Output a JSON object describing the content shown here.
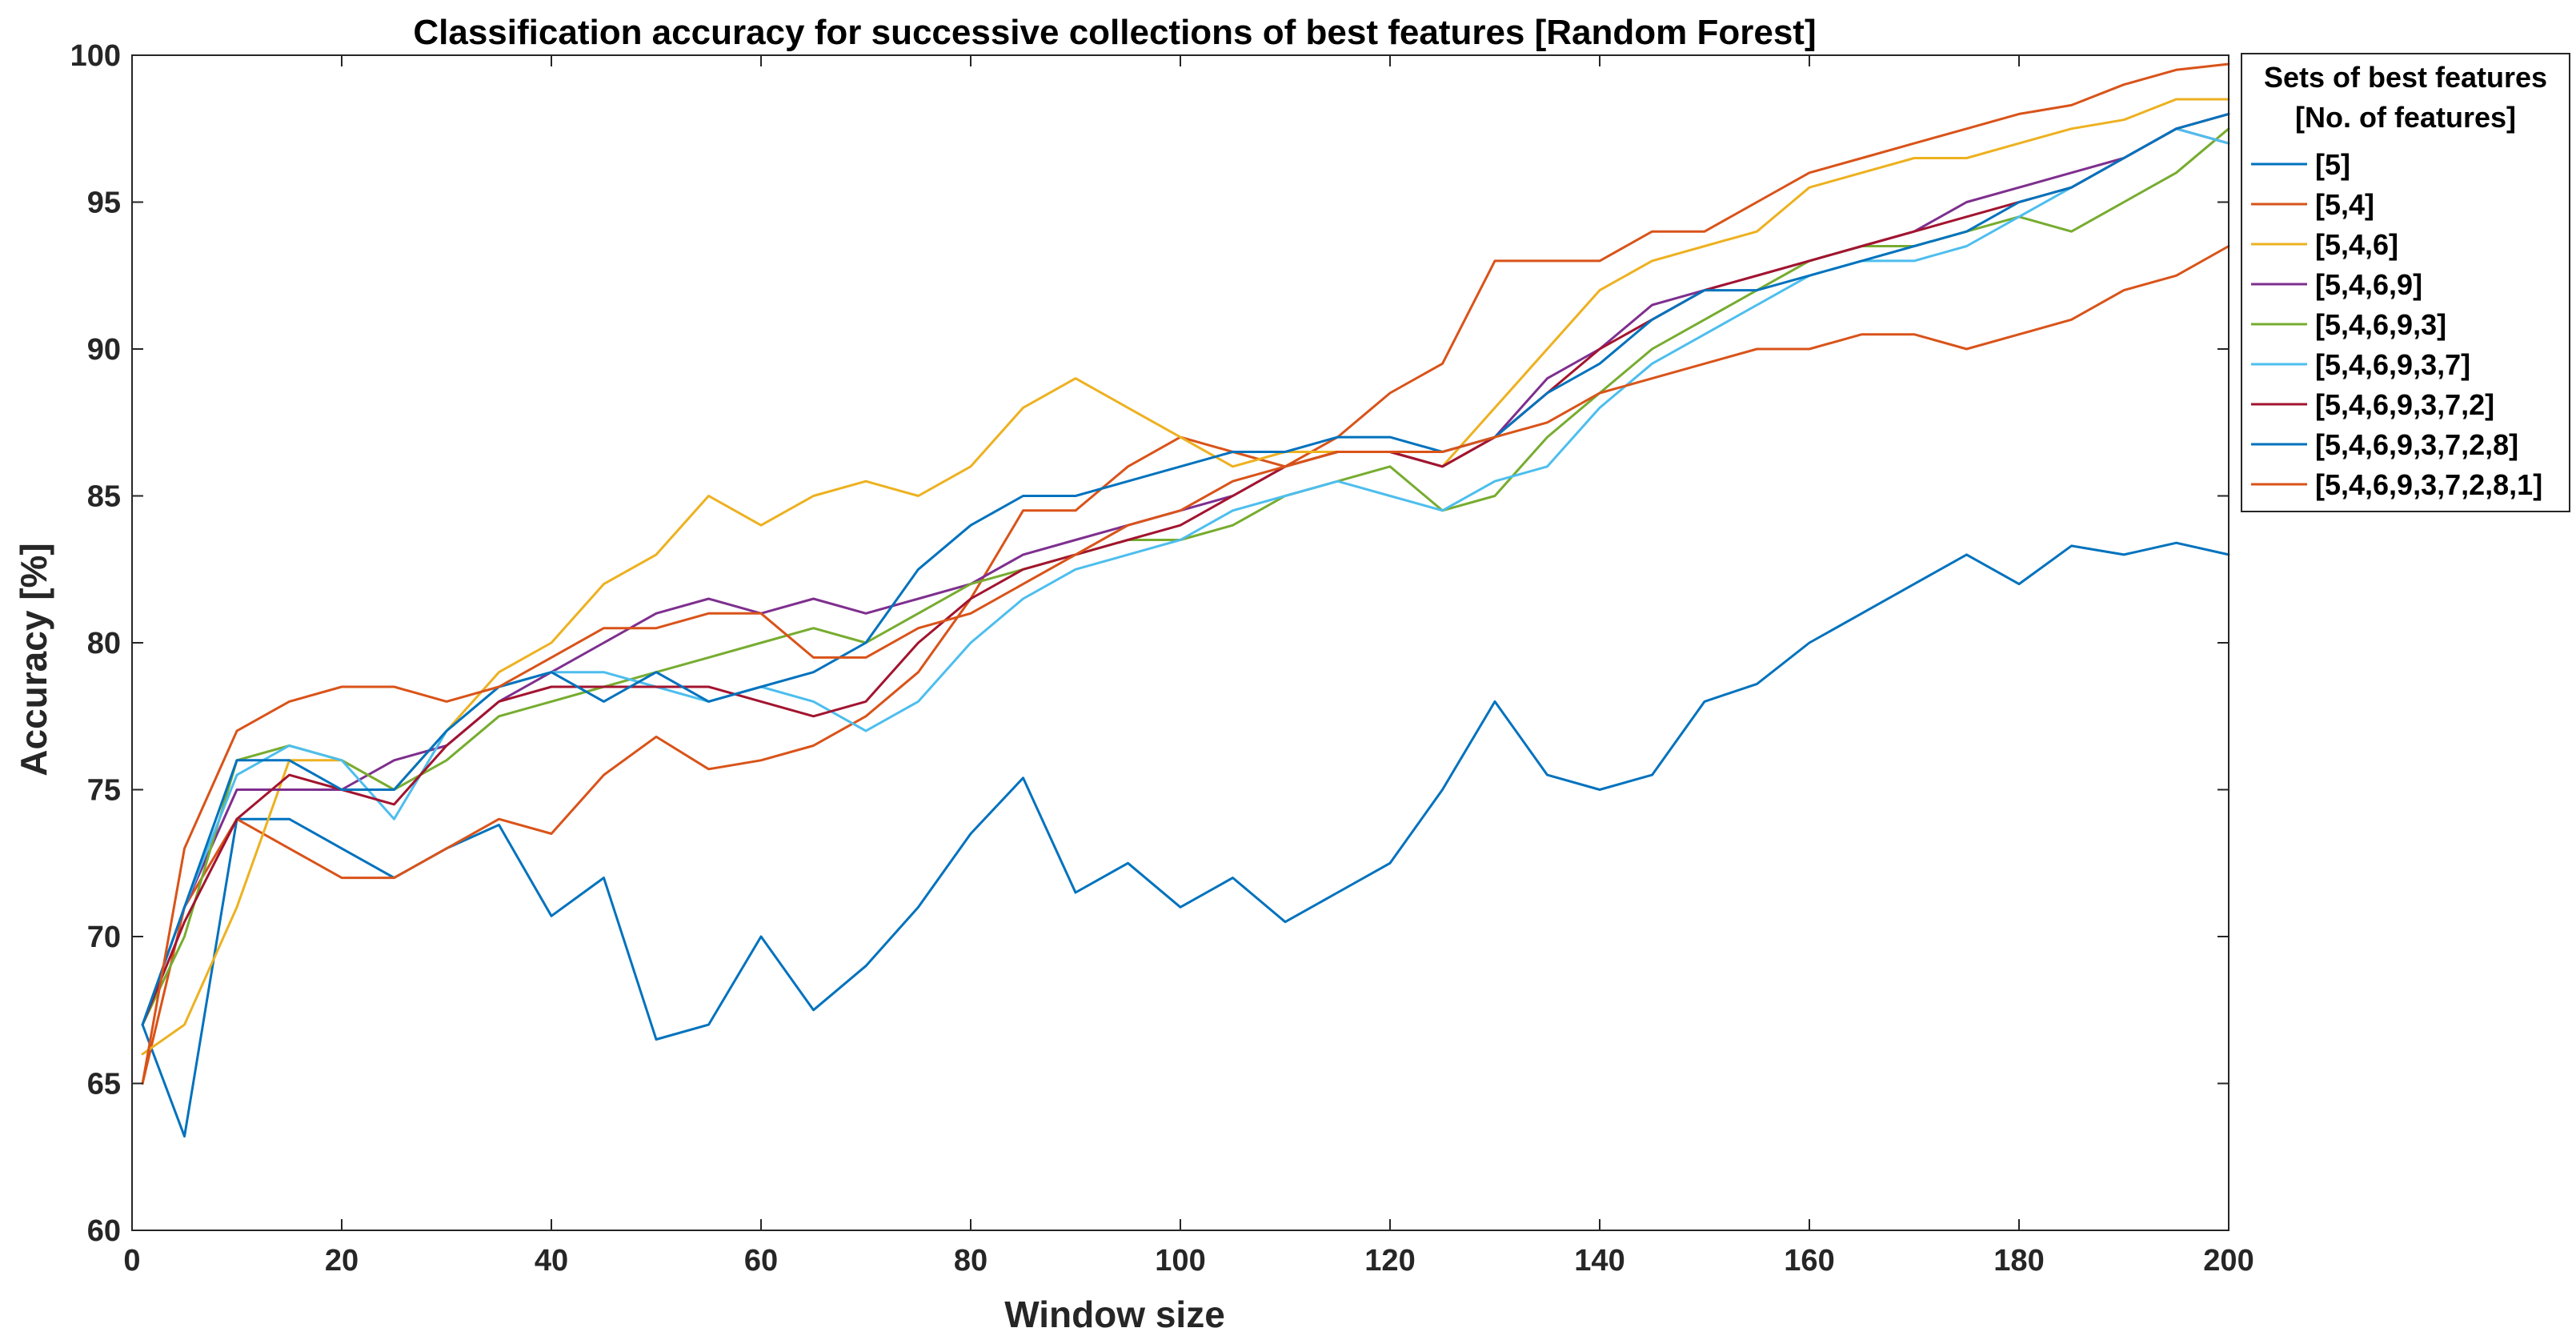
{
  "chart_data": {
    "type": "line",
    "title": "Classification accuracy for successive collections of best features [Random Forest]",
    "xlabel": "Window size",
    "ylabel": "Accuracy [%]",
    "xlim": [
      0,
      200
    ],
    "ylim": [
      60,
      100
    ],
    "xticks": [
      0,
      20,
      40,
      60,
      80,
      100,
      120,
      140,
      160,
      180,
      200
    ],
    "yticks": [
      60,
      65,
      70,
      75,
      80,
      85,
      90,
      95,
      100
    ],
    "grid": false,
    "legend_position": "outside-right-top",
    "legend_title": [
      "Sets of best features",
      "[No. of features]"
    ],
    "x_sample": [
      1,
      5,
      10,
      15,
      20,
      25,
      30,
      35,
      40,
      45,
      50,
      55,
      60,
      65,
      70,
      75,
      80,
      85,
      90,
      95,
      100,
      105,
      110,
      115,
      120,
      125,
      130,
      135,
      140,
      145,
      150,
      155,
      160,
      165,
      170,
      175,
      180,
      185,
      190,
      195,
      200
    ],
    "series": [
      {
        "name": "[5]",
        "color": "#0072BD",
        "values": [
          67.0,
          63.2,
          74.0,
          74.0,
          73.0,
          72.0,
          73.0,
          73.8,
          70.7,
          72.0,
          66.5,
          67.0,
          70.0,
          67.5,
          69.0,
          71.0,
          73.5,
          75.4,
          71.5,
          72.5,
          71.0,
          72.0,
          70.5,
          71.5,
          72.5,
          75.0,
          78.0,
          75.5,
          75.0,
          75.5,
          78.0,
          78.6,
          80.0,
          81.0,
          82.0,
          83.0,
          82.0,
          83.3,
          83.0,
          83.4,
          83.0
        ]
      },
      {
        "name": "[5,4]",
        "color": "#D95319",
        "values": [
          65.0,
          71.0,
          74.0,
          73.0,
          72.0,
          72.0,
          73.0,
          74.0,
          73.5,
          75.5,
          76.8,
          75.7,
          76.0,
          76.5,
          77.5,
          79.0,
          81.5,
          84.5,
          84.5,
          86.0,
          87.0,
          86.5,
          86.0,
          87.0,
          88.5,
          89.5,
          93.0,
          93.0,
          93.0,
          94.0,
          94.0,
          95.0,
          96.0,
          96.5,
          97.0,
          97.5,
          98.0,
          98.3,
          99.0,
          99.5,
          99.7
        ]
      },
      {
        "name": "[5,4,6]",
        "color": "#EDB120",
        "values": [
          66.0,
          67.0,
          71.0,
          76.0,
          76.0,
          75.0,
          77.0,
          79.0,
          80.0,
          82.0,
          83.0,
          85.0,
          84.0,
          85.0,
          85.5,
          85.0,
          86.0,
          88.0,
          89.0,
          88.0,
          87.0,
          86.0,
          86.5,
          86.5,
          86.5,
          86.0,
          88.0,
          90.0,
          92.0,
          93.0,
          93.5,
          94.0,
          95.5,
          96.0,
          96.5,
          96.5,
          97.0,
          97.5,
          97.8,
          98.5,
          98.5
        ]
      },
      {
        "name": "[5,4,6,9]",
        "color": "#7E2F8E",
        "values": [
          67.0,
          71.0,
          75.0,
          75.0,
          75.0,
          76.0,
          76.5,
          78.0,
          79.0,
          80.0,
          81.0,
          81.5,
          81.0,
          81.5,
          81.0,
          81.5,
          82.0,
          83.0,
          83.5,
          84.0,
          84.5,
          85.0,
          86.0,
          86.5,
          86.5,
          86.0,
          87.0,
          89.0,
          90.0,
          91.5,
          92.0,
          92.5,
          93.0,
          93.5,
          94.0,
          95.0,
          95.5,
          96.0,
          96.5,
          97.5,
          97.0
        ]
      },
      {
        "name": "[5,4,6,9,3]",
        "color": "#77AC30",
        "values": [
          67.0,
          70.0,
          76.0,
          76.5,
          76.0,
          75.0,
          76.0,
          77.5,
          78.0,
          78.5,
          79.0,
          79.5,
          80.0,
          80.5,
          80.0,
          81.0,
          82.0,
          82.5,
          83.0,
          83.5,
          83.5,
          84.0,
          85.0,
          85.5,
          86.0,
          84.5,
          85.0,
          87.0,
          88.5,
          90.0,
          91.0,
          92.0,
          93.0,
          93.5,
          93.5,
          94.0,
          94.5,
          94.0,
          95.0,
          96.0,
          97.5
        ]
      },
      {
        "name": "[5,4,6,9,3,7]",
        "color": "#4DBEEE",
        "values": [
          67.0,
          71.0,
          75.5,
          76.5,
          76.0,
          74.0,
          77.0,
          78.5,
          79.0,
          79.0,
          78.5,
          78.0,
          78.5,
          78.0,
          77.0,
          78.0,
          80.0,
          81.5,
          82.5,
          83.0,
          83.5,
          84.5,
          85.0,
          85.5,
          85.0,
          84.5,
          85.5,
          86.0,
          88.0,
          89.5,
          90.5,
          91.5,
          92.5,
          93.0,
          93.0,
          93.5,
          94.5,
          95.5,
          96.5,
          97.5,
          97.0
        ]
      },
      {
        "name": "[5,4,6,9,3,7,2]",
        "color": "#A2142F",
        "values": [
          67.0,
          70.5,
          74.0,
          75.5,
          75.0,
          74.5,
          76.5,
          78.0,
          78.5,
          78.5,
          78.5,
          78.5,
          78.0,
          77.5,
          78.0,
          80.0,
          81.5,
          82.5,
          83.0,
          83.5,
          84.0,
          85.0,
          86.0,
          86.5,
          86.5,
          86.0,
          87.0,
          88.5,
          90.0,
          91.0,
          92.0,
          92.5,
          93.0,
          93.5,
          94.0,
          94.5,
          95.0,
          95.5,
          96.5,
          97.5,
          98.0
        ]
      },
      {
        "name": "[5,4,6,9,3,7,2,8]",
        "color": "#0072BD",
        "values": [
          67.0,
          71.0,
          76.0,
          76.0,
          75.0,
          75.0,
          77.0,
          78.5,
          79.0,
          78.0,
          79.0,
          78.0,
          78.5,
          79.0,
          80.0,
          82.5,
          84.0,
          85.0,
          85.0,
          85.5,
          86.0,
          86.5,
          86.5,
          87.0,
          87.0,
          86.5,
          87.0,
          88.5,
          89.5,
          91.0,
          92.0,
          92.0,
          92.5,
          93.0,
          93.5,
          94.0,
          95.0,
          95.5,
          96.5,
          97.5,
          98.0
        ]
      },
      {
        "name": "[5,4,6,9,3,7,2,8,1]",
        "color": "#D95319",
        "values": [
          65.0,
          73.0,
          77.0,
          78.0,
          78.5,
          78.5,
          78.0,
          78.5,
          79.5,
          80.5,
          80.5,
          81.0,
          81.0,
          79.5,
          79.5,
          80.5,
          81.0,
          82.0,
          83.0,
          84.0,
          84.5,
          85.5,
          86.0,
          86.5,
          86.5,
          86.5,
          87.0,
          87.5,
          88.5,
          89.0,
          89.5,
          90.0,
          90.0,
          90.5,
          90.5,
          90.0,
          90.5,
          91.0,
          92.0,
          92.5,
          93.5
        ]
      }
    ]
  }
}
